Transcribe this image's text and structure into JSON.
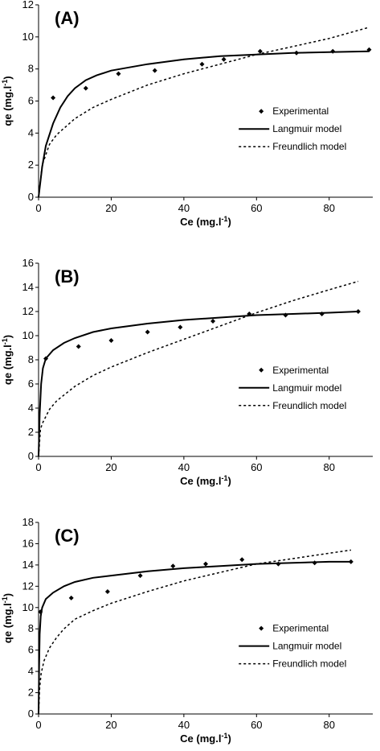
{
  "chart_data": [
    {
      "type": "scatter",
      "panel_label": "(A)",
      "xlabel": "Ce (mg.l-1)",
      "ylabel": "qe (mg.l-1)",
      "xlabel_base": "Ce (mg.l",
      "ylabel_base": "qe (mg.l",
      "label_sup": "-1",
      "label_close": ")",
      "xlim": [
        0,
        92
      ],
      "ylim": [
        0,
        12
      ],
      "xticks": [
        0,
        20,
        40,
        60,
        80
      ],
      "yticks": [
        0,
        2,
        4,
        6,
        8,
        10,
        12
      ],
      "legend": [
        "Experimental",
        "Langmuir model",
        "Freundlich model"
      ],
      "legend_position": "center-right",
      "series": [
        {
          "name": "Experimental",
          "style": "points",
          "x": [
            4,
            13,
            22,
            32,
            45,
            51,
            61,
            71,
            81,
            91
          ],
          "y": [
            6.2,
            6.8,
            7.7,
            7.9,
            8.3,
            8.6,
            9.1,
            9.0,
            9.1,
            9.2
          ]
        },
        {
          "name": "Langmuir model",
          "style": "solid",
          "x": [
            0,
            1,
            2,
            4,
            6,
            8,
            10,
            13,
            16,
            20,
            25,
            30,
            40,
            50,
            60,
            70,
            80,
            91
          ],
          "y": [
            0,
            1.9,
            3.2,
            4.6,
            5.6,
            6.3,
            6.8,
            7.3,
            7.6,
            7.9,
            8.1,
            8.3,
            8.6,
            8.8,
            8.9,
            9.0,
            9.05,
            9.1
          ]
        },
        {
          "name": "Freundlich model",
          "style": "dotted",
          "x": [
            0,
            1,
            3,
            5,
            10,
            15,
            20,
            30,
            40,
            50,
            60,
            70,
            80,
            91
          ],
          "y": [
            0,
            2.0,
            3.3,
            3.9,
            4.9,
            5.6,
            6.1,
            7.0,
            7.7,
            8.3,
            8.9,
            9.4,
            9.9,
            10.6
          ]
        }
      ]
    },
    {
      "type": "scatter",
      "panel_label": "(B)",
      "xlabel": "Ce (mg.l-1)",
      "ylabel": "qe (mg.l-1)",
      "xlabel_base": "Ce (mg.l",
      "ylabel_base": "qe (mg.l",
      "label_sup": "-1",
      "label_close": ")",
      "xlim": [
        0,
        92
      ],
      "ylim": [
        0,
        16
      ],
      "xticks": [
        0,
        20,
        40,
        60,
        80
      ],
      "yticks": [
        0,
        2,
        4,
        6,
        8,
        10,
        12,
        14,
        16
      ],
      "legend": [
        "Experimental",
        "Langmuir model",
        "Freundlich model"
      ],
      "legend_position": "center-right",
      "series": [
        {
          "name": "Experimental",
          "style": "points",
          "x": [
            2,
            11,
            20,
            30,
            39,
            48,
            58,
            68,
            78,
            88
          ],
          "y": [
            8.1,
            9.1,
            9.6,
            10.3,
            10.7,
            11.2,
            11.8,
            11.7,
            11.8,
            12.0
          ]
        },
        {
          "name": "Langmuir model",
          "style": "solid",
          "x": [
            0,
            0.3,
            0.7,
            1.2,
            2,
            4,
            7,
            10,
            15,
            20,
            30,
            40,
            50,
            60,
            70,
            80,
            88
          ],
          "y": [
            0,
            3.5,
            6.0,
            7.3,
            8.1,
            8.8,
            9.4,
            9.8,
            10.3,
            10.6,
            11.0,
            11.3,
            11.5,
            11.7,
            11.8,
            11.9,
            12.0
          ]
        },
        {
          "name": "Freundlich model",
          "style": "dotted",
          "x": [
            0,
            0.5,
            1,
            3,
            5,
            10,
            15,
            20,
            30,
            40,
            50,
            60,
            70,
            80,
            88
          ],
          "y": [
            0,
            2.2,
            2.7,
            3.9,
            4.6,
            5.8,
            6.7,
            7.4,
            8.6,
            9.7,
            10.8,
            11.9,
            12.9,
            13.8,
            14.5
          ]
        }
      ]
    },
    {
      "type": "scatter",
      "panel_label": "(C)",
      "xlabel": "Ce (mg.l-1)",
      "ylabel": "qe (mg.l-1)",
      "xlabel_base": "Ce (mg.l",
      "ylabel_base": "qe (mg.l",
      "label_sup": "-1",
      "label_close": ")",
      "xlim": [
        0,
        92
      ],
      "ylim": [
        0,
        18
      ],
      "xticks": [
        0,
        20,
        40,
        60,
        80
      ],
      "yticks": [
        0,
        2,
        4,
        6,
        8,
        10,
        12,
        14,
        16,
        18
      ],
      "legend": [
        "Experimental",
        "Langmuir model",
        "Freundlich model"
      ],
      "legend_position": "center-right",
      "series": [
        {
          "name": "Experimental",
          "style": "points",
          "x": [
            0.5,
            9,
            19,
            28,
            37,
            46,
            56,
            66,
            76,
            86
          ],
          "y": [
            9.6,
            10.9,
            11.5,
            13.0,
            13.9,
            14.1,
            14.5,
            14.1,
            14.2,
            14.3
          ]
        },
        {
          "name": "Langmuir model",
          "style": "solid",
          "x": [
            0,
            0.15,
            0.3,
            0.6,
            1,
            2,
            4,
            7,
            10,
            15,
            20,
            30,
            40,
            50,
            60,
            70,
            80,
            86
          ],
          "y": [
            0,
            4.5,
            7.5,
            9.2,
            10.0,
            10.8,
            11.4,
            12.0,
            12.4,
            12.8,
            13.0,
            13.4,
            13.7,
            13.9,
            14.1,
            14.2,
            14.3,
            14.3
          ]
        },
        {
          "name": "Freundlich model",
          "style": "dotted",
          "x": [
            0,
            0.3,
            0.7,
            1.5,
            3,
            5,
            7,
            10,
            15,
            20,
            30,
            40,
            50,
            60,
            70,
            80,
            86
          ],
          "y": [
            0,
            2.5,
            3.8,
            5.0,
            6.2,
            7.2,
            8.0,
            8.9,
            9.7,
            10.4,
            11.5,
            12.5,
            13.3,
            14.1,
            14.6,
            15.1,
            15.4
          ]
        }
      ]
    }
  ]
}
